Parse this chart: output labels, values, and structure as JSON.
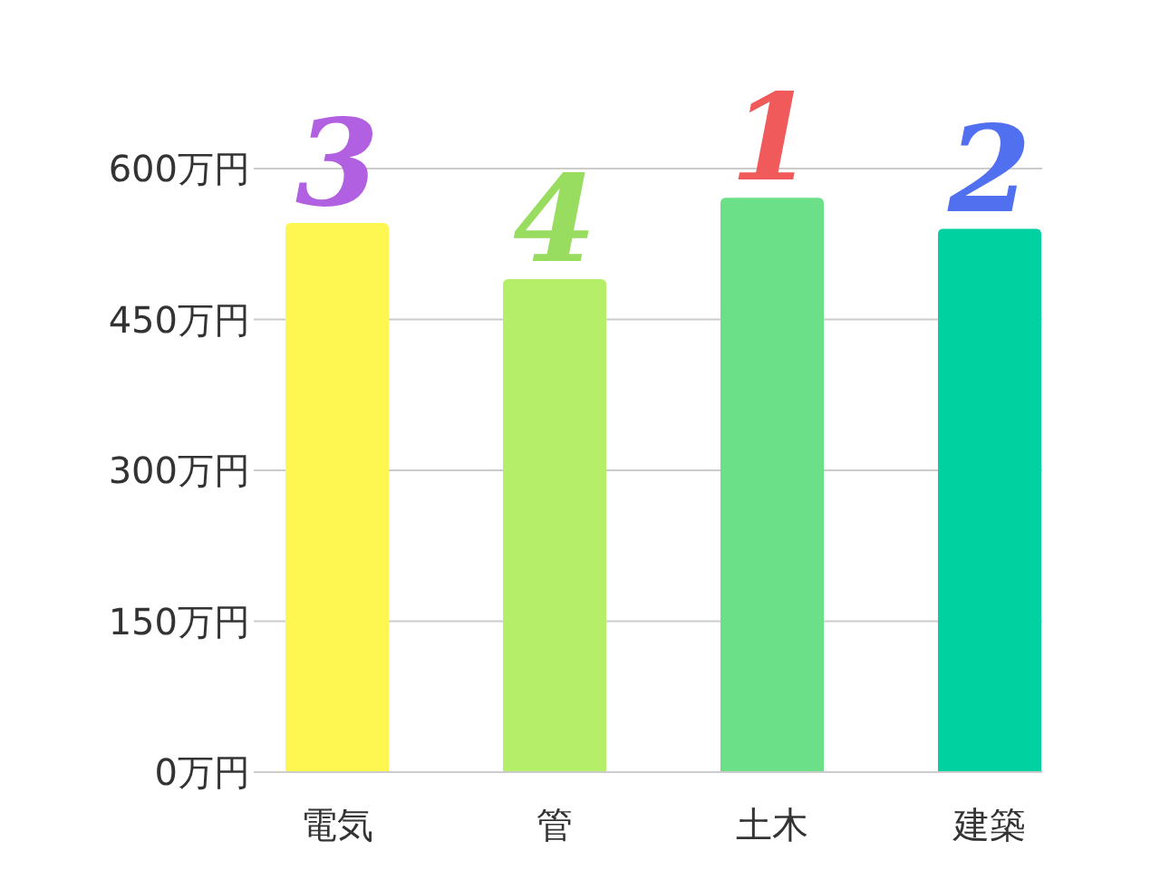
{
  "chart_data": {
    "type": "bar",
    "categories": [
      "電気",
      "管",
      "土木",
      "建築"
    ],
    "values": [
      546,
      490,
      571,
      540
    ],
    "colors": [
      "#fff751",
      "#b5ef6a",
      "#6be089",
      "#00d1a0"
    ],
    "ylim": [
      0,
      600
    ],
    "yticks": [
      {
        "value": 0,
        "label": "0万円"
      },
      {
        "value": 150,
        "label": "150万円"
      },
      {
        "value": 300,
        "label": "300万円"
      },
      {
        "value": 450,
        "label": "450万円"
      },
      {
        "value": 600,
        "label": "600万円"
      }
    ],
    "grid": "y",
    "annotations": [
      {
        "text": "3",
        "x": "電気",
        "y": 546
      },
      {
        "text": "4",
        "x": "管",
        "y": 490
      },
      {
        "text": "1",
        "x": "土木",
        "y": 571
      },
      {
        "text": "2",
        "x": "建築",
        "y": 540
      }
    ]
  }
}
